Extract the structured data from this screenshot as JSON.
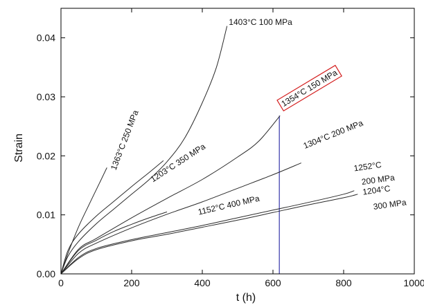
{
  "chart_data": {
    "type": "line",
    "xlabel": "t (h)",
    "ylabel": "Strain",
    "xlim": [
      0,
      1000
    ],
    "ylim": [
      0,
      0.045
    ],
    "xticks": [
      0,
      200,
      400,
      600,
      800,
      1000
    ],
    "yticks": [
      0.0,
      0.01,
      0.02,
      0.03,
      0.04
    ],
    "ytick_labels": [
      "0.00",
      "0.01",
      "0.02",
      "0.03",
      "0.04"
    ],
    "xtick_labels": [
      "0",
      "200",
      "400",
      "600",
      "800",
      "1000"
    ],
    "grid": false,
    "colors": {
      "curves": "#2a2a2a",
      "vline": "#3333aa",
      "highlight_box": "#d42020",
      "axes": "#000000"
    },
    "series": [
      {
        "name": "1363°C 250 MPa",
        "x": [
          0,
          20,
          50,
          80,
          110,
          130
        ],
        "y": [
          0,
          0.0035,
          0.008,
          0.0118,
          0.0155,
          0.018
        ]
      },
      {
        "name": "1403°C 100 MPa",
        "x": [
          0,
          20,
          50,
          100,
          150,
          200,
          250,
          300,
          350,
          400,
          440,
          470
        ],
        "y": [
          0,
          0.003,
          0.0055,
          0.0085,
          0.011,
          0.0135,
          0.016,
          0.019,
          0.023,
          0.029,
          0.035,
          0.042
        ]
      },
      {
        "name": "1203°C 350 MPa",
        "x": [
          0,
          20,
          50,
          100,
          150,
          200,
          250,
          290
        ],
        "y": [
          0,
          0.004,
          0.0068,
          0.0098,
          0.0123,
          0.0148,
          0.0172,
          0.0192
        ]
      },
      {
        "name": "1354°C 150 MPa",
        "x": [
          0,
          50,
          100,
          200,
          300,
          400,
          500,
          560,
          620
        ],
        "y": [
          0,
          0.0042,
          0.006,
          0.0095,
          0.0128,
          0.016,
          0.0198,
          0.0225,
          0.0268
        ]
      },
      {
        "name": "1304°C 200 MPa",
        "x": [
          0,
          50,
          100,
          200,
          300,
          400,
          500,
          600,
          680
        ],
        "y": [
          0,
          0.0035,
          0.0052,
          0.0078,
          0.0101,
          0.0122,
          0.0145,
          0.0168,
          0.0188
        ]
      },
      {
        "name": "1152°C 400 MPa",
        "x": [
          0,
          50,
          100,
          150,
          200,
          250,
          300
        ],
        "y": [
          0,
          0.004,
          0.0057,
          0.0072,
          0.0084,
          0.0095,
          0.0105
        ]
      },
      {
        "name": "1252°C 200 MPa",
        "x": [
          0,
          50,
          100,
          200,
          300,
          400,
          500,
          600,
          700,
          800,
          830
        ],
        "y": [
          0,
          0.0028,
          0.0043,
          0.0058,
          0.007,
          0.0082,
          0.0095,
          0.0108,
          0.0121,
          0.0135,
          0.0141
        ]
      },
      {
        "name": "1204°C 300 MPa",
        "x": [
          0,
          50,
          100,
          200,
          300,
          400,
          500,
          600,
          700,
          800,
          840
        ],
        "y": [
          0,
          0.0026,
          0.0041,
          0.0056,
          0.0067,
          0.0079,
          0.0091,
          0.0104,
          0.0117,
          0.0129,
          0.0135
        ]
      }
    ],
    "vertical_line": {
      "x": 618,
      "y": [
        0,
        0.0268
      ]
    },
    "annotations": [
      {
        "text": "1363°C 250 MPa",
        "x": 155,
        "y": 0.0175,
        "rotation": -69,
        "boxed": false,
        "key": "a_1363"
      },
      {
        "text": "1403°C 100 MPa",
        "x": 475,
        "y": 0.0422,
        "rotation": 0,
        "boxed": false,
        "key": "a_1403"
      },
      {
        "text": "1203°C 350 MPa",
        "x": 260,
        "y": 0.0155,
        "rotation": -33,
        "boxed": false,
        "key": "a_1203"
      },
      {
        "text": "1354°C 150 MPa",
        "x": 630,
        "y": 0.0283,
        "rotation": -31,
        "boxed": true,
        "key": "a_1354"
      },
      {
        "text": "1304°C 200 MPa",
        "x": 690,
        "y": 0.0212,
        "rotation": -22,
        "boxed": false,
        "key": "a_1304"
      },
      {
        "text": "1152°C 400 MPa",
        "x": 390,
        "y": 0.01,
        "rotation": -13,
        "boxed": false,
        "key": "a_1152"
      },
      {
        "text": "1252°C",
        "x": 830,
        "y": 0.0174,
        "rotation": -8,
        "boxed": false,
        "key": "a_1252a"
      },
      {
        "text": "200 MPa",
        "x": 852,
        "y": 0.0151,
        "rotation": -8,
        "boxed": false,
        "key": "a_1252b"
      },
      {
        "text": "1204°C",
        "x": 855,
        "y": 0.0134,
        "rotation": -8,
        "boxed": false,
        "key": "a_1204a"
      },
      {
        "text": "300 MPa",
        "x": 885,
        "y": 0.0109,
        "rotation": -8,
        "boxed": false,
        "key": "a_1204b"
      }
    ]
  }
}
